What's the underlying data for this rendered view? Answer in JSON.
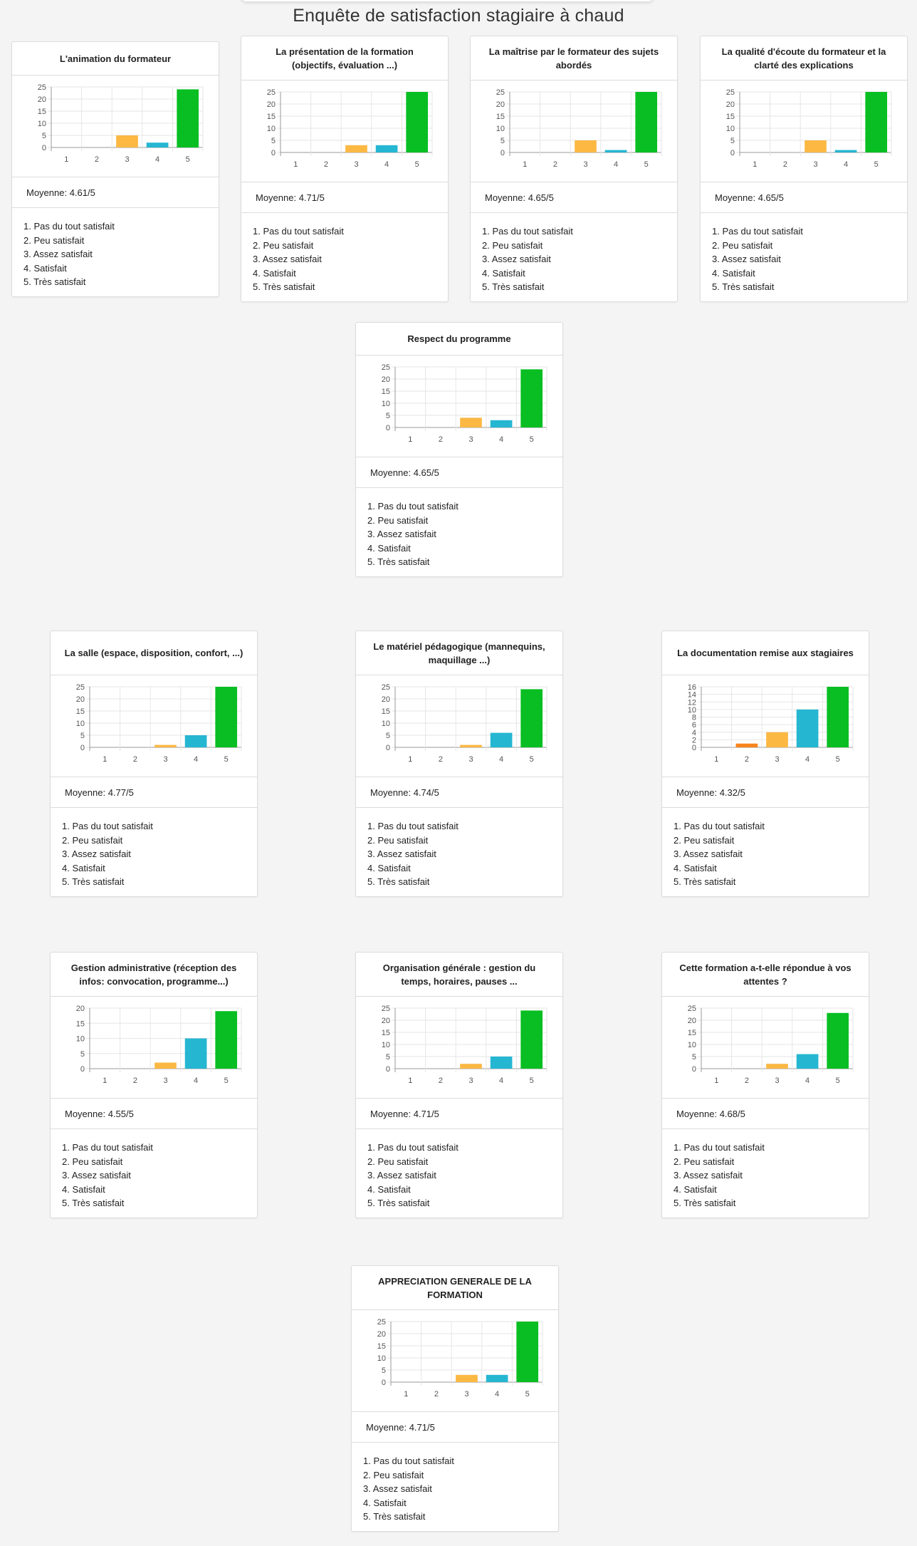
{
  "page": {
    "title": "Enquête de satisfaction stagiaire à chaud"
  },
  "colors": {
    "1": "#e74c3c",
    "2": "#f7841c",
    "3": "#fbb843",
    "4": "#25b6d2",
    "5": "#08be22",
    "grid": "#e6e6e6",
    "axis": "#999999"
  },
  "legend_items": [
    "1. Pas du tout satisfait",
    "2. Peu satisfait",
    "3. Assez satisfait",
    "4. Satisfait",
    "5. Très satisfait"
  ],
  "chart_data": [
    {
      "type": "bar",
      "title": "L'animation du formateur",
      "categories": [
        "1",
        "2",
        "3",
        "4",
        "5"
      ],
      "values": [
        0,
        0,
        5,
        2,
        24
      ],
      "ylim": [
        0,
        25
      ],
      "yticks": [
        0,
        5,
        10,
        15,
        20,
        25
      ],
      "grid": true,
      "average": "Moyenne: 4.61/5"
    },
    {
      "type": "bar",
      "title": "La présentation de la formation (objectifs, évaluation ...)",
      "categories": [
        "1",
        "2",
        "3",
        "4",
        "5"
      ],
      "values": [
        0,
        0,
        3,
        3,
        25
      ],
      "ylim": [
        0,
        25
      ],
      "yticks": [
        0,
        5,
        10,
        15,
        20,
        25
      ],
      "grid": true,
      "average": "Moyenne: 4.71/5"
    },
    {
      "type": "bar",
      "title": "La maîtrise par le formateur des sujets abordés",
      "categories": [
        "1",
        "2",
        "3",
        "4",
        "5"
      ],
      "values": [
        0,
        0,
        5,
        1,
        25
      ],
      "ylim": [
        0,
        25
      ],
      "yticks": [
        0,
        5,
        10,
        15,
        20,
        25
      ],
      "grid": true,
      "average": "Moyenne: 4.65/5"
    },
    {
      "type": "bar",
      "title": "La qualité d'écoute du formateur et la clarté des explications",
      "categories": [
        "1",
        "2",
        "3",
        "4",
        "5"
      ],
      "values": [
        0,
        0,
        5,
        1,
        25
      ],
      "ylim": [
        0,
        25
      ],
      "yticks": [
        0,
        5,
        10,
        15,
        20,
        25
      ],
      "grid": true,
      "average": "Moyenne: 4.65/5"
    },
    {
      "type": "bar",
      "title": "Respect du programme",
      "categories": [
        "1",
        "2",
        "3",
        "4",
        "5"
      ],
      "values": [
        0,
        0,
        4,
        3,
        24
      ],
      "ylim": [
        0,
        25
      ],
      "yticks": [
        0,
        5,
        10,
        15,
        20,
        25
      ],
      "grid": true,
      "average": "Moyenne: 4.65/5"
    },
    {
      "type": "bar",
      "title": "La salle (espace, disposition, confort, ...)",
      "categories": [
        "1",
        "2",
        "3",
        "4",
        "5"
      ],
      "values": [
        0,
        0,
        1,
        5,
        25
      ],
      "ylim": [
        0,
        25
      ],
      "yticks": [
        0,
        5,
        10,
        15,
        20,
        25
      ],
      "grid": true,
      "average": "Moyenne: 4.77/5"
    },
    {
      "type": "bar",
      "title": "Le matériel pédagogique (mannequins, maquillage ...)",
      "categories": [
        "1",
        "2",
        "3",
        "4",
        "5"
      ],
      "values": [
        0,
        0,
        1,
        6,
        24
      ],
      "ylim": [
        0,
        25
      ],
      "yticks": [
        0,
        5,
        10,
        15,
        20,
        25
      ],
      "grid": true,
      "average": "Moyenne: 4.74/5"
    },
    {
      "type": "bar",
      "title": "La documentation remise aux stagiaires",
      "categories": [
        "1",
        "2",
        "3",
        "4",
        "5"
      ],
      "values": [
        0,
        1,
        4,
        10,
        16
      ],
      "ylim": [
        0,
        16
      ],
      "yticks": [
        0,
        2,
        4,
        6,
        8,
        10,
        12,
        14,
        16
      ],
      "grid": true,
      "average": "Moyenne: 4.32/5"
    },
    {
      "type": "bar",
      "title": "Gestion administrative (réception des infos: convocation, programme...)",
      "categories": [
        "1",
        "2",
        "3",
        "4",
        "5"
      ],
      "values": [
        0,
        0,
        2,
        10,
        19
      ],
      "ylim": [
        0,
        20
      ],
      "yticks": [
        0,
        5,
        10,
        15,
        20
      ],
      "grid": true,
      "average": "Moyenne: 4.55/5"
    },
    {
      "type": "bar",
      "title": "Organisation générale : gestion du temps, horaires, pauses ...",
      "categories": [
        "1",
        "2",
        "3",
        "4",
        "5"
      ],
      "values": [
        0,
        0,
        2,
        5,
        24
      ],
      "ylim": [
        0,
        25
      ],
      "yticks": [
        0,
        5,
        10,
        15,
        20,
        25
      ],
      "grid": true,
      "average": "Moyenne: 4.71/5"
    },
    {
      "type": "bar",
      "title": "Cette formation a-t-elle répondue à vos attentes ?",
      "categories": [
        "1",
        "2",
        "3",
        "4",
        "5"
      ],
      "values": [
        0,
        0,
        2,
        6,
        23
      ],
      "ylim": [
        0,
        25
      ],
      "yticks": [
        0,
        5,
        10,
        15,
        20,
        25
      ],
      "grid": true,
      "average": "Moyenne: 4.68/5"
    },
    {
      "type": "bar",
      "title": "APPRECIATION GENERALE DE LA FORMATION",
      "categories": [
        "1",
        "2",
        "3",
        "4",
        "5"
      ],
      "values": [
        0,
        0,
        3,
        3,
        25
      ],
      "ylim": [
        0,
        25
      ],
      "yticks": [
        0,
        5,
        10,
        15,
        20,
        25
      ],
      "grid": true,
      "average": "Moyenne: 4.71/5"
    }
  ]
}
